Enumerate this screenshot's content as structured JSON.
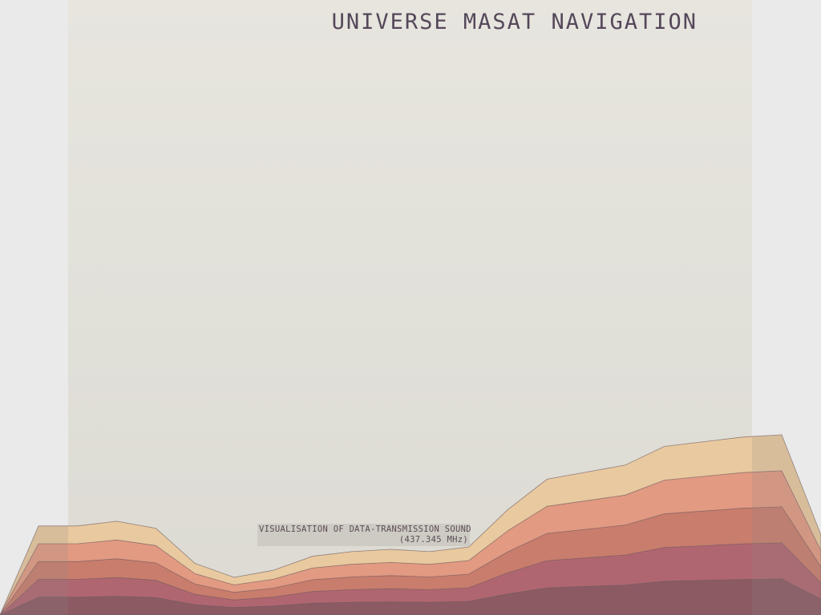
{
  "header": {
    "title": "UNIVERSE MASAT NAVIGATION"
  },
  "caption": {
    "line1": "VISUALISATION OF DATA-TRANSMISSION SOUND",
    "line2": "(437.345 MHz)"
  },
  "colors": {
    "panel": "#e4e2db",
    "title": "#55475a",
    "layer_top": "#e9c99f",
    "layer_2": "#e29a82",
    "layer_3": "#c97d6c",
    "layer_4": "#b06670",
    "layer_base": "#8c5a63",
    "outline": "#6e5a60"
  },
  "visualisation": {
    "layer_count": 5,
    "profile": [
      0.22,
      0.22,
      0.24,
      0.21,
      0.06,
      0.0,
      0.03,
      0.09,
      0.11,
      0.12,
      0.11,
      0.13,
      0.29,
      0.42,
      0.45,
      0.48,
      0.56,
      0.58,
      0.6,
      0.61
    ]
  }
}
